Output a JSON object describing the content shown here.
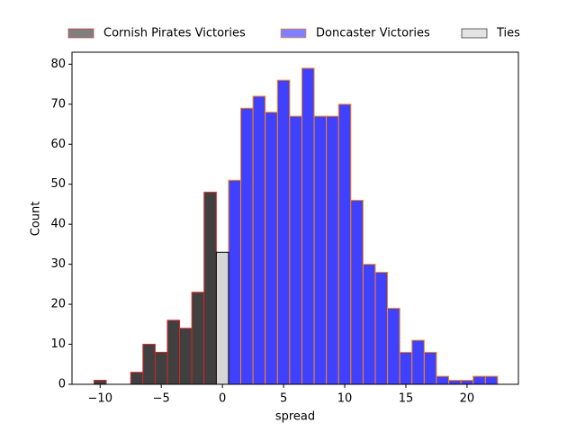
{
  "chart_data": {
    "type": "histogram",
    "xlabel": "spread",
    "ylabel": "Count",
    "xlim": [
      -12.3,
      24.2
    ],
    "ylim": [
      0,
      83
    ],
    "xticks": [
      {
        "value": -10,
        "label": "−10"
      },
      {
        "value": -5,
        "label": "−5"
      },
      0,
      5,
      10,
      15,
      20
    ],
    "yticks": [
      0,
      10,
      20,
      30,
      40,
      50,
      60,
      70,
      80
    ],
    "legend": "top",
    "series": [
      {
        "name": "Cornish Pirates Victories",
        "color": "#000000",
        "edgecolor": "#d62728",
        "bins": [
          -10.5,
          -9.5,
          -8.5,
          -7.5,
          -6.5,
          -5.5,
          -4.5,
          -3.5,
          -2.5,
          -1.5,
          -0.5
        ],
        "values": [
          1,
          0,
          0,
          3,
          10,
          8,
          16,
          14,
          23,
          48
        ]
      },
      {
        "name": "Doncaster Victories",
        "color": "#0000ff",
        "edgecolor": "#ff8c00",
        "bins": [
          0.5,
          1.5,
          2.5,
          3.5,
          4.5,
          5.5,
          6.5,
          7.5,
          8.5,
          9.5,
          10.5,
          11.5,
          12.5,
          13.5,
          14.5,
          15.5,
          16.5,
          17.5,
          18.5,
          19.5,
          20.5,
          21.5,
          22.5
        ],
        "values": [
          51,
          69,
          72,
          68,
          76,
          67,
          79,
          67,
          67,
          70,
          46,
          30,
          28,
          19,
          8,
          11,
          8,
          2,
          1,
          1,
          2,
          2
        ]
      },
      {
        "name": "Ties",
        "color": "#c8c8c8",
        "edgecolor": "#000000",
        "bins": [
          -0.5,
          0.5
        ],
        "values": [
          33
        ]
      }
    ]
  }
}
